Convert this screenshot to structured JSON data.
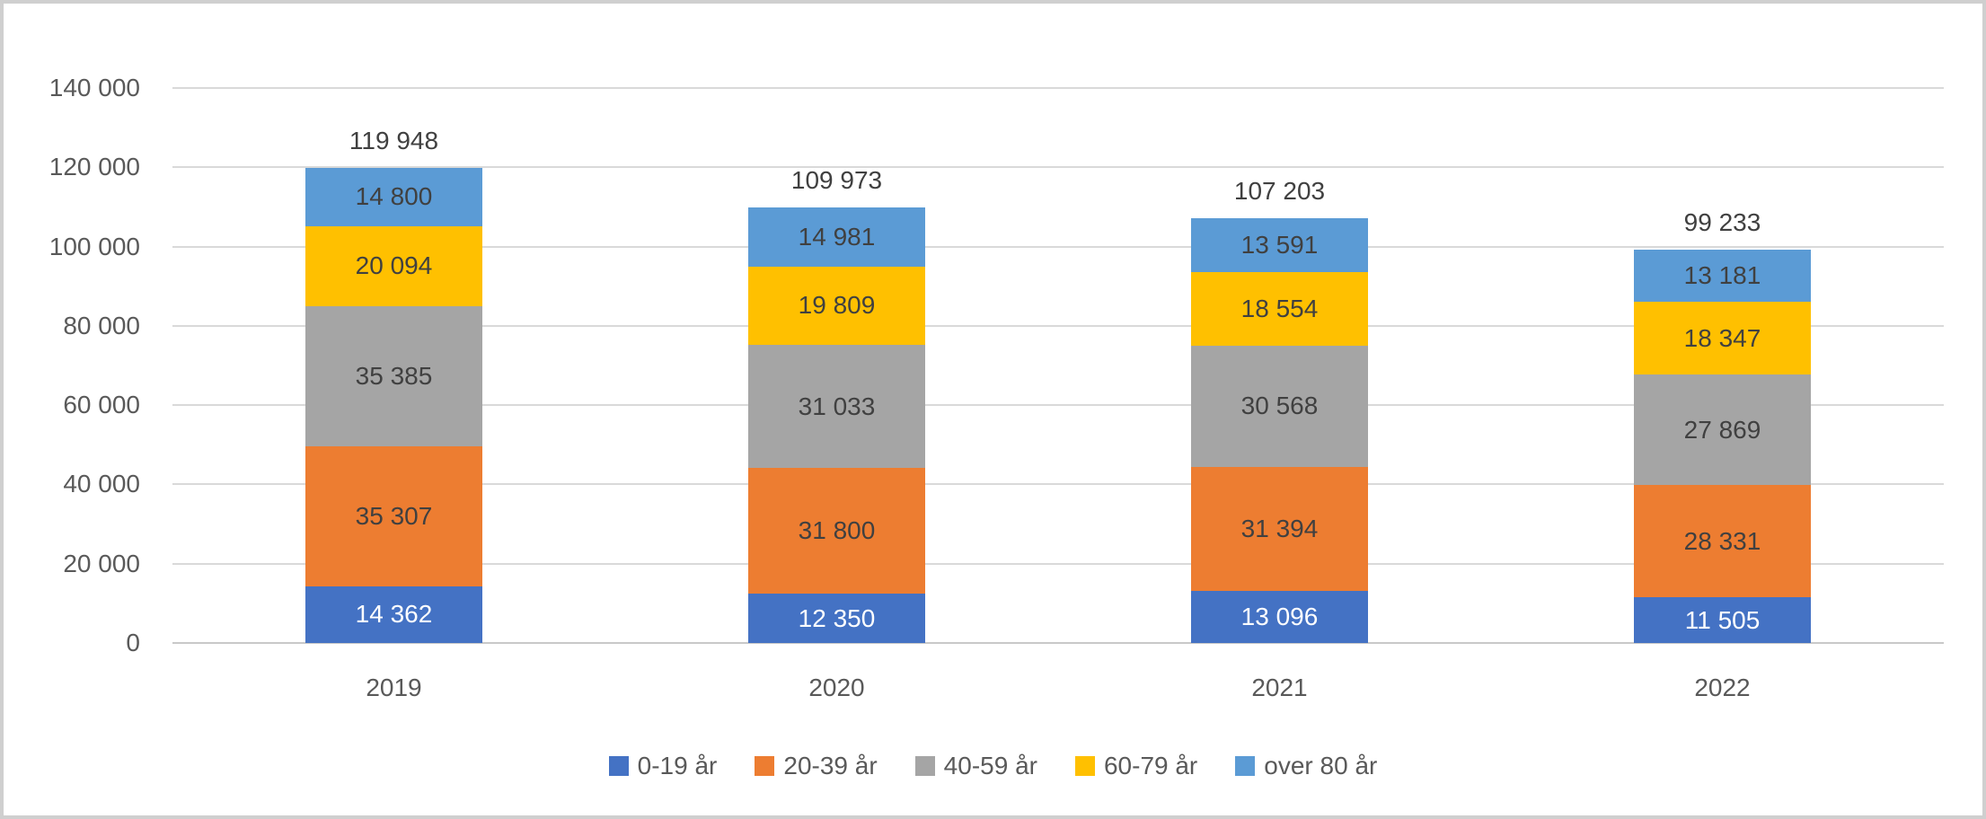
{
  "chart_data": {
    "type": "bar",
    "stacked": true,
    "title": "",
    "xlabel": "",
    "ylabel": "",
    "categories": [
      "2019",
      "2020",
      "2021",
      "2022"
    ],
    "series": [
      {
        "name": "0-19 år",
        "color": "#4472C4",
        "label_color": "#FFFFFF",
        "values": [
          14362,
          12350,
          13096,
          11505
        ]
      },
      {
        "name": "20-39 år",
        "color": "#ED7D31",
        "label_color": "#404040",
        "values": [
          35307,
          31800,
          31394,
          28331
        ]
      },
      {
        "name": "40-59 år",
        "color": "#A5A5A5",
        "label_color": "#404040",
        "values": [
          35385,
          31033,
          30568,
          27869
        ]
      },
      {
        "name": "60-79 år",
        "color": "#FFC000",
        "label_color": "#404040",
        "values": [
          20094,
          19809,
          18554,
          18347
        ]
      },
      {
        "name": "over 80 år",
        "color": "#5B9BD5",
        "label_color": "#404040",
        "values": [
          14800,
          14981,
          13591,
          13181
        ]
      }
    ],
    "totals": [
      119948,
      109973,
      107203,
      99233
    ],
    "ylim": [
      0,
      140000
    ],
    "yticks": [
      0,
      20000,
      40000,
      60000,
      80000,
      100000,
      120000,
      140000
    ],
    "number_format": "space-thousands",
    "grid": true,
    "gridline_color": "#D9D9D9",
    "axis_text_color": "#595959",
    "data_label_color": "#404040",
    "legend_position": "bottom"
  }
}
